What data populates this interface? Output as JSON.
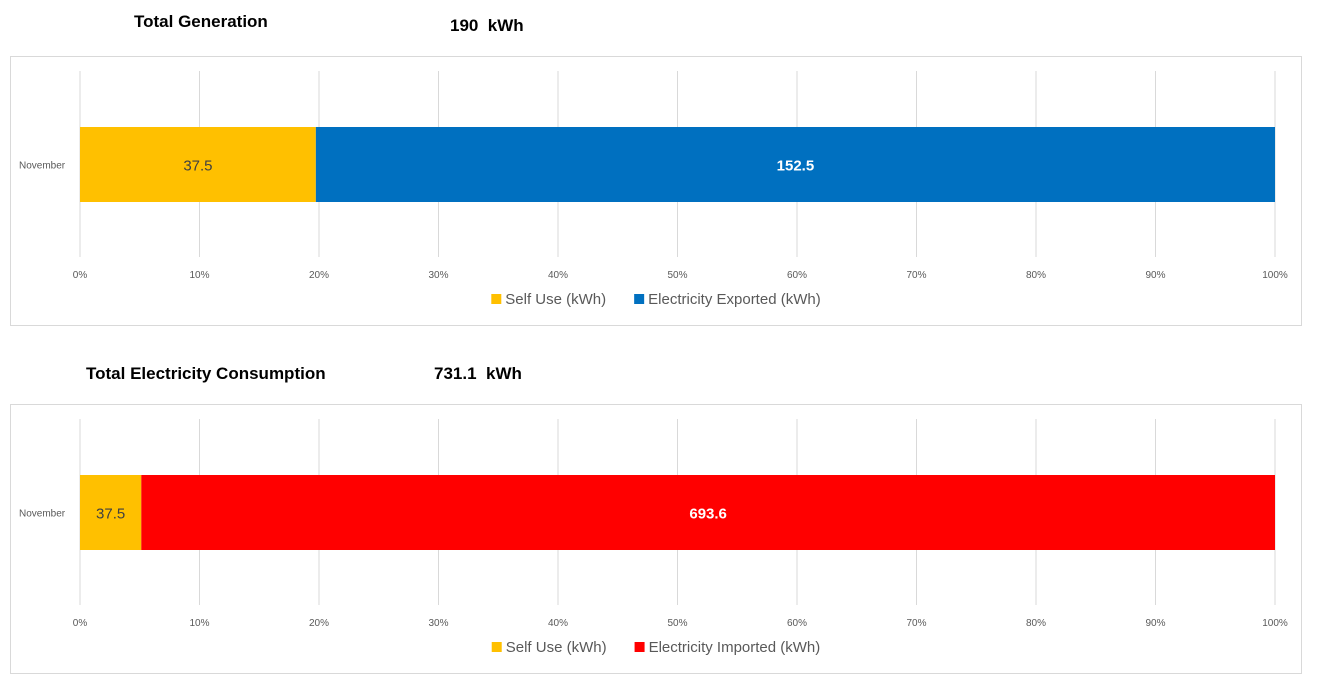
{
  "chart_data": [
    {
      "type": "bar",
      "orientation": "horizontal",
      "stacked": "percent",
      "title": "Total Generation",
      "total": "190  kWh",
      "categories": [
        "November"
      ],
      "series": [
        {
          "name": "Self Use (kWh)",
          "values": [
            37.5
          ],
          "color": "#FFC000",
          "label_color": "#404040"
        },
        {
          "name": "Electricity Exported (kWh)",
          "values": [
            152.5
          ],
          "color": "#0070C0",
          "label_color": "#ffffff"
        }
      ],
      "xticks": [
        "0%",
        "10%",
        "20%",
        "30%",
        "40%",
        "50%",
        "60%",
        "70%",
        "80%",
        "90%",
        "100%"
      ],
      "xlim": [
        0,
        100
      ],
      "grid": true,
      "legend": "bottom"
    },
    {
      "type": "bar",
      "orientation": "horizontal",
      "stacked": "percent",
      "title": "Total Electricity Consumption",
      "total": "731.1  kWh",
      "categories": [
        "November"
      ],
      "series": [
        {
          "name": "Self Use (kWh)",
          "values": [
            37.5
          ],
          "color": "#FFC000",
          "label_color": "#404040"
        },
        {
          "name": "Electricity Imported (kWh)",
          "values": [
            693.6
          ],
          "color": "#FF0000",
          "label_color": "#ffffff"
        }
      ],
      "xticks": [
        "0%",
        "10%",
        "20%",
        "30%",
        "40%",
        "50%",
        "60%",
        "70%",
        "80%",
        "90%",
        "100%"
      ],
      "xlim": [
        0,
        100
      ],
      "grid": true,
      "legend": "bottom"
    }
  ]
}
